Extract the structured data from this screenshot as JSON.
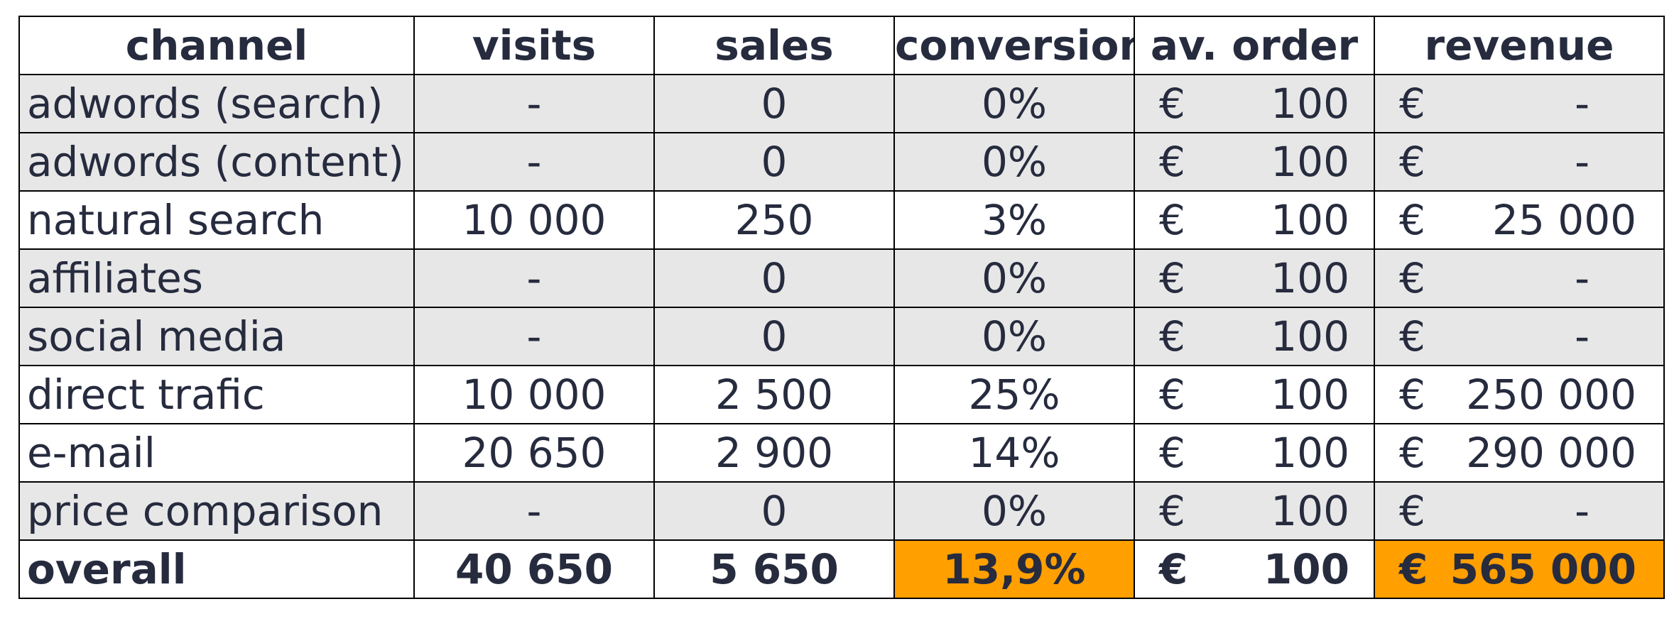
{
  "colors": {
    "shaded_row": "#e7e7e7",
    "highlight": "#ff9f00",
    "text": "#262b3e"
  },
  "table": {
    "headers": [
      "channel",
      "visits",
      "sales",
      "conversion",
      "av. order",
      "revenue"
    ],
    "currency": "€",
    "rows": [
      {
        "channel": "adwords (search)",
        "visits": "-",
        "sales": "0",
        "conversion": "0%",
        "av_order": "100",
        "revenue": "-",
        "shaded": true
      },
      {
        "channel": "adwords (content)",
        "visits": "-",
        "sales": "0",
        "conversion": "0%",
        "av_order": "100",
        "revenue": "-",
        "shaded": true
      },
      {
        "channel": "natural search",
        "visits": "10 000",
        "sales": "250",
        "conversion": "3%",
        "av_order": "100",
        "revenue": "25 000",
        "shaded": false
      },
      {
        "channel": "affiliates",
        "visits": "-",
        "sales": "0",
        "conversion": "0%",
        "av_order": "100",
        "revenue": "-",
        "shaded": true
      },
      {
        "channel": "social media",
        "visits": "-",
        "sales": "0",
        "conversion": "0%",
        "av_order": "100",
        "revenue": "-",
        "shaded": true
      },
      {
        "channel": "direct trafic",
        "visits": "10 000",
        "sales": "2 500",
        "conversion": "25%",
        "av_order": "100",
        "revenue": "250 000",
        "shaded": false
      },
      {
        "channel": "e-mail",
        "visits": "20 650",
        "sales": "2 900",
        "conversion": "14%",
        "av_order": "100",
        "revenue": "290 000",
        "shaded": false
      },
      {
        "channel": "price comparison",
        "visits": "-",
        "sales": "0",
        "conversion": "0%",
        "av_order": "100",
        "revenue": "-",
        "shaded": true
      }
    ],
    "total": {
      "channel": "overall",
      "visits": "40 650",
      "sales": "5 650",
      "conversion": "13,9%",
      "av_order": "100",
      "revenue": "565 000"
    }
  }
}
